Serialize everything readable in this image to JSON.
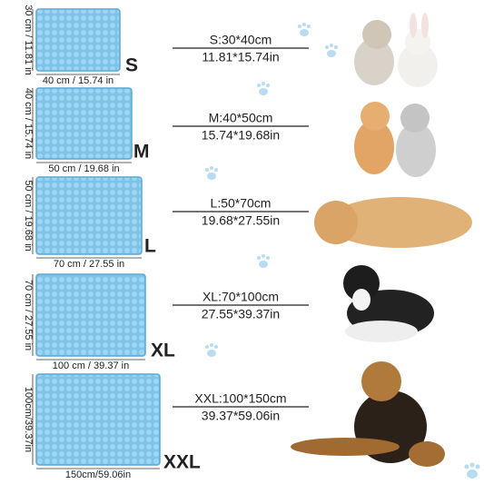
{
  "sizes": [
    {
      "letter": "S",
      "height_label": "30 cm / 11.81 in",
      "width_label": "40 cm / 15.74 in",
      "metric": "S:30*40cm",
      "imperial": "11.81*15.74in"
    },
    {
      "letter": "M",
      "height_label": "40 cm / 15.74 in",
      "width_label": "50 cm / 19.68 in",
      "metric": "M:40*50cm",
      "imperial": "15.74*19.68in"
    },
    {
      "letter": "L",
      "height_label": "50 cm / 19.68 in",
      "width_label": "70 cm / 27.55 in",
      "metric": "L:50*70cm",
      "imperial": "19.68*27.55in"
    },
    {
      "letter": "XL",
      "height_label": "70 cm / 27.55 in",
      "width_label": "100 cm / 39.37 in",
      "metric": "XL:70*100cm",
      "imperial": "27.55*39.37in"
    },
    {
      "letter": "XXL",
      "height_label": "100cm/39.37in",
      "width_label": "150cm/59.06in",
      "metric": "XXL:100*150cm",
      "imperial": "39.37*59.06in"
    }
  ]
}
